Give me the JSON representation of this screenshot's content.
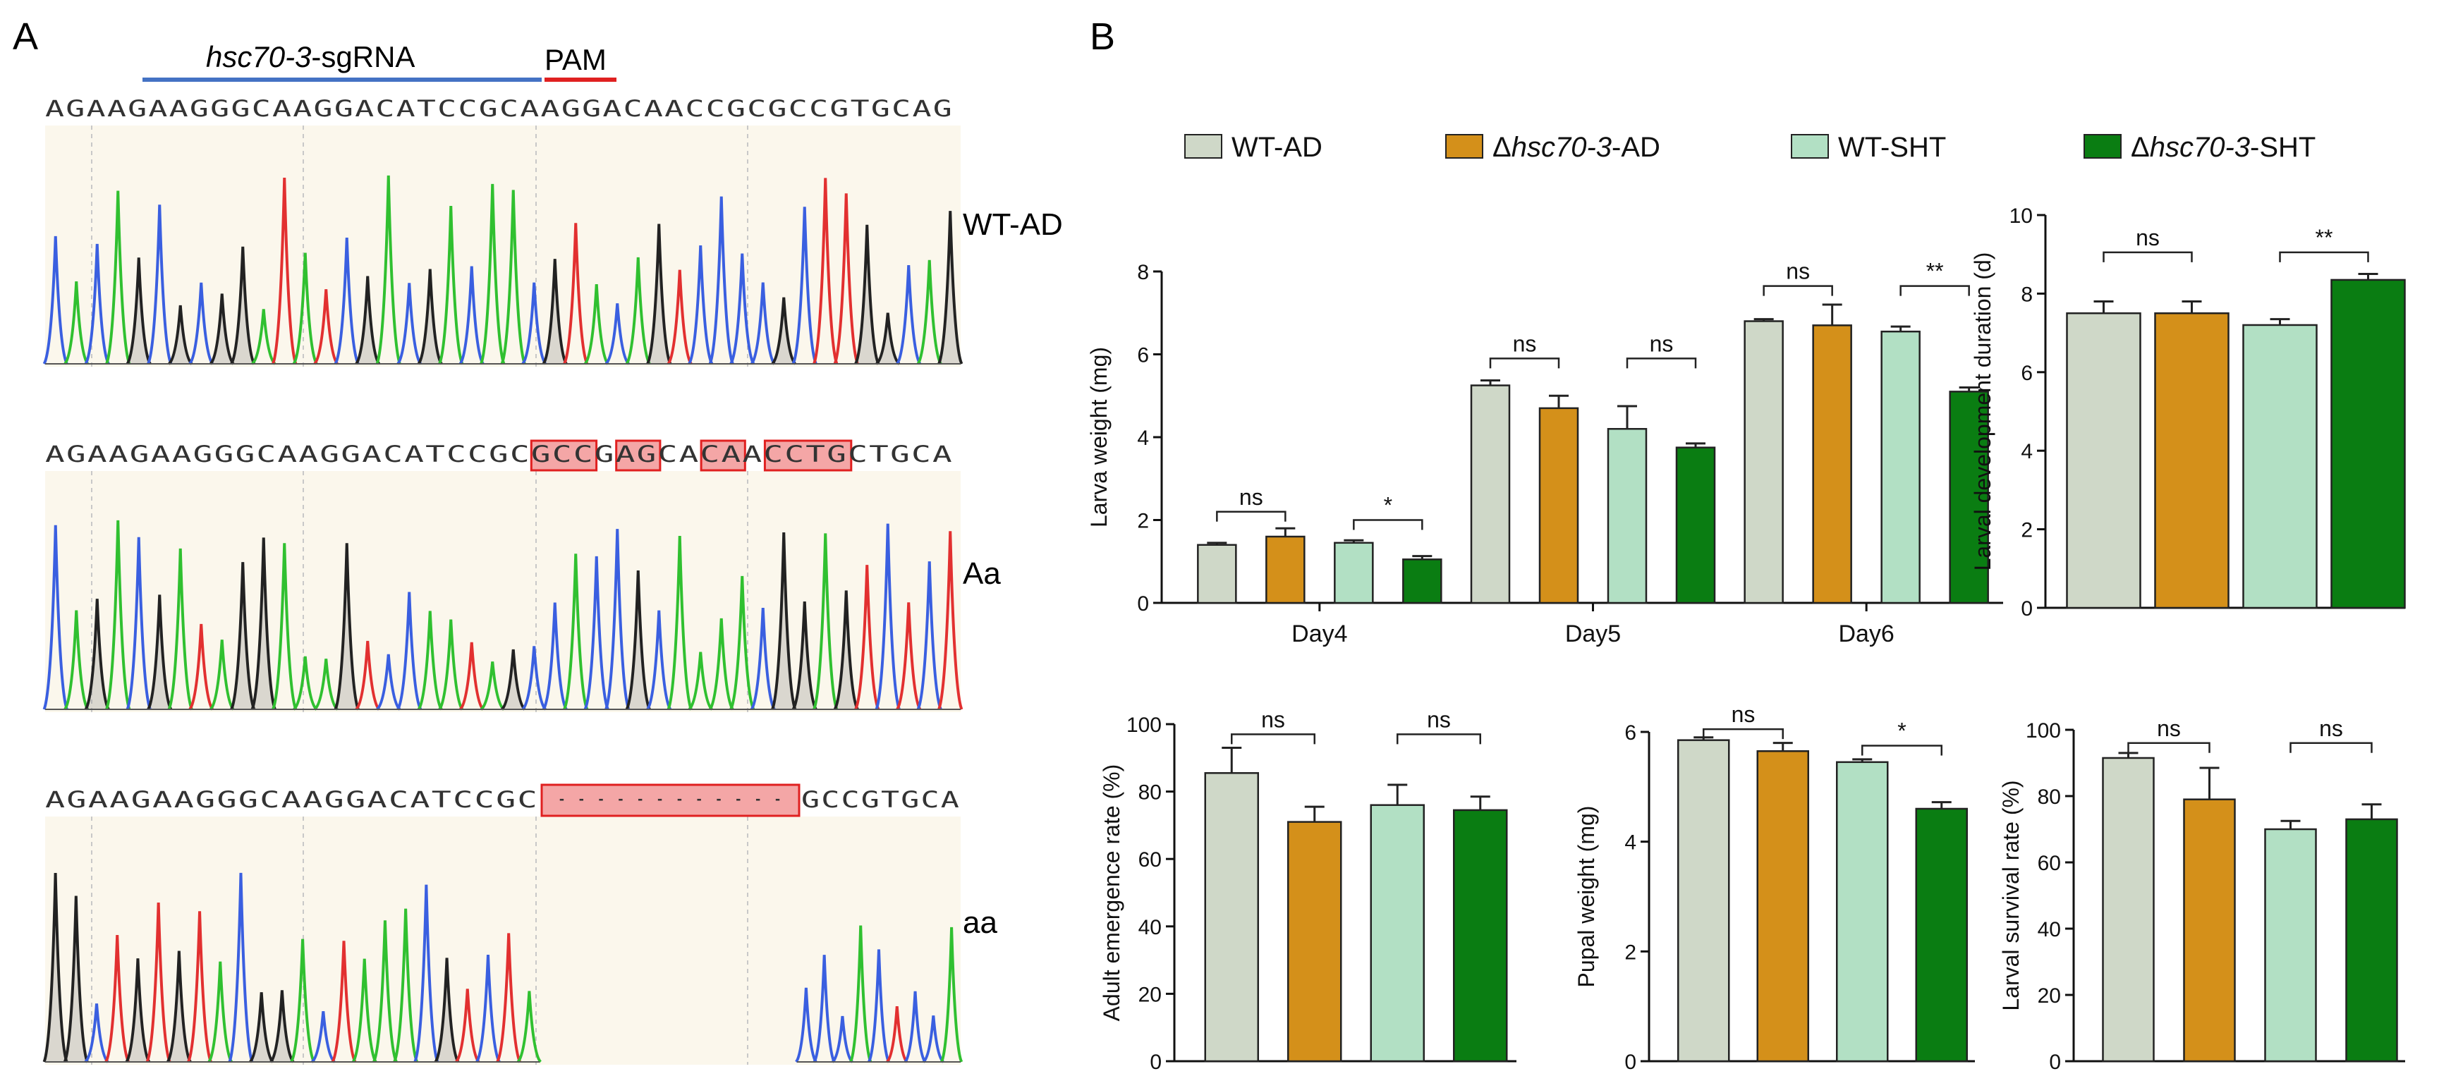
{
  "panels": {
    "A": "A",
    "B": "B"
  },
  "panel_a": {
    "sgrna_label_italic": "hsc70-3",
    "sgrna_label_suffix": "-sgRNA",
    "pam_label": "PAM",
    "colors": {
      "sgrna_bar": "#4472c4",
      "pam_bar": "#e02020",
      "trace_bg": "#fbf7ec",
      "A": "#30c030",
      "C": "#3a5fe0",
      "G": "#222222",
      "T": "#e23030",
      "box_fill": "#f4a6a6",
      "box_stroke": "#e02020"
    },
    "tracks": [
      {
        "label": "WT-AD",
        "sequence": "AGAAGAAGGGCAAGGACATCCGCAAGGACAACCGCGCCGTGCAG",
        "boxes": [],
        "gap": null
      },
      {
        "label": "Aa",
        "sequence": "AGAAGAAGGGCAAGGACATCCGCGCCGAGCACAACCTGCTGCA",
        "boxes": [
          [
            23,
            26
          ],
          [
            27,
            29
          ],
          [
            31,
            33
          ],
          [
            34,
            38
          ]
        ],
        "gap": null
      },
      {
        "label": "aa",
        "sequence_left": "AGAAGAAGGGCAAGGACATCCGC",
        "gap_text": "- - - - - - - - - - - -",
        "sequence_right": "GCCGTGCA",
        "boxes": [],
        "gap": true
      }
    ]
  },
  "legend": [
    {
      "name": "WT-AD",
      "color": "#cfd8c8"
    },
    {
      "name": "Δhsc70-3-AD",
      "color": "#d4901a"
    },
    {
      "name": "WT-SHT",
      "color": "#b2e0c4"
    },
    {
      "name": "Δhsc70-3-SHT",
      "color": "#0a7d12"
    }
  ],
  "chart_data": [
    {
      "id": "larva-weight",
      "type": "bar",
      "ylabel": "Larva weight (mg)",
      "ylim": [
        0,
        8
      ],
      "yticks": [
        0,
        2,
        4,
        6,
        8
      ],
      "categories": [
        "Day4",
        "Day5",
        "Day6"
      ],
      "series": [
        {
          "name": "WT-AD",
          "values": [
            1.4,
            5.25,
            6.8
          ],
          "errors": [
            0.05,
            0.12,
            0.05
          ]
        },
        {
          "name": "Δhsc70-3-AD",
          "values": [
            1.6,
            4.7,
            6.7
          ],
          "errors": [
            0.2,
            0.3,
            0.5
          ]
        },
        {
          "name": "WT-SHT",
          "values": [
            1.45,
            4.2,
            6.55
          ],
          "errors": [
            0.06,
            0.55,
            0.12
          ]
        },
        {
          "name": "Δhsc70-3-SHT",
          "values": [
            1.05,
            3.75,
            5.1
          ],
          "errors": [
            0.08,
            0.1,
            0.1
          ]
        }
      ],
      "significance": [
        {
          "cat": 0,
          "from": 0,
          "to": 1,
          "y": 2.2,
          "label": "ns"
        },
        {
          "cat": 0,
          "from": 2,
          "to": 3,
          "y": 2.0,
          "label": "*"
        },
        {
          "cat": 1,
          "from": 0,
          "to": 1,
          "y": 5.9,
          "label": "ns"
        },
        {
          "cat": 1,
          "from": 2,
          "to": 3,
          "y": 5.9,
          "label": "ns"
        },
        {
          "cat": 2,
          "from": 0,
          "to": 1,
          "y": 7.65,
          "label": "ns"
        },
        {
          "cat": 2,
          "from": 2,
          "to": 3,
          "y": 7.65,
          "label": "**"
        }
      ]
    },
    {
      "id": "larval-development",
      "type": "bar",
      "ylabel": "Larval development duration (d)",
      "ylim": [
        0,
        10
      ],
      "yticks": [
        0,
        2,
        4,
        6,
        8,
        10
      ],
      "categories": [
        ""
      ],
      "series": [
        {
          "name": "WT-AD",
          "values": [
            7.5
          ],
          "errors": [
            0.3
          ]
        },
        {
          "name": "Δhsc70-3-AD",
          "values": [
            7.5
          ],
          "errors": [
            0.3
          ]
        },
        {
          "name": "WT-SHT",
          "values": [
            7.2
          ],
          "errors": [
            0.15
          ]
        },
        {
          "name": "Δhsc70-3-SHT",
          "values": [
            8.35
          ],
          "errors": [
            0.15
          ]
        }
      ],
      "significance": [
        {
          "cat": 0,
          "from": 0,
          "to": 1,
          "y": 9.05,
          "label": "ns"
        },
        {
          "cat": 0,
          "from": 2,
          "to": 3,
          "y": 9.05,
          "label": "**"
        }
      ]
    },
    {
      "id": "adult-emergence",
      "type": "bar",
      "ylabel": "Adult emergence rate (%)",
      "ylim": [
        0,
        100
      ],
      "yticks": [
        0,
        20,
        40,
        60,
        80,
        100
      ],
      "categories": [
        ""
      ],
      "series": [
        {
          "name": "WT-AD",
          "values": [
            85.5
          ],
          "errors": [
            7.5
          ]
        },
        {
          "name": "Δhsc70-3-AD",
          "values": [
            71
          ],
          "errors": [
            4.5
          ]
        },
        {
          "name": "WT-SHT",
          "values": [
            76
          ],
          "errors": [
            6
          ]
        },
        {
          "name": "Δhsc70-3-SHT",
          "values": [
            74.5
          ],
          "errors": [
            4
          ]
        }
      ],
      "significance": [
        {
          "cat": 0,
          "from": 0,
          "to": 1,
          "y": 97,
          "label": "ns"
        },
        {
          "cat": 0,
          "from": 2,
          "to": 3,
          "y": 97,
          "label": "ns"
        }
      ]
    },
    {
      "id": "pupal-weight",
      "type": "bar",
      "ylabel": "Pupal weight (mg)",
      "ylim": [
        0,
        6
      ],
      "yticks": [
        0,
        2,
        4,
        6
      ],
      "categories": [
        ""
      ],
      "series": [
        {
          "name": "WT-AD",
          "values": [
            5.85
          ],
          "errors": [
            0.05
          ]
        },
        {
          "name": "Δhsc70-3-AD",
          "values": [
            5.65
          ],
          "errors": [
            0.15
          ]
        },
        {
          "name": "WT-SHT",
          "values": [
            5.45
          ],
          "errors": [
            0.05
          ]
        },
        {
          "name": "Δhsc70-3-SHT",
          "values": [
            4.6
          ],
          "errors": [
            0.12
          ]
        }
      ],
      "significance": [
        {
          "cat": 0,
          "from": 0,
          "to": 1,
          "y": 6.05,
          "label": "ns"
        },
        {
          "cat": 0,
          "from": 2,
          "to": 3,
          "y": 5.75,
          "label": "*"
        }
      ]
    },
    {
      "id": "larval-survival",
      "type": "bar",
      "ylabel": "Larval survival rate (%)",
      "ylim": [
        0,
        100
      ],
      "yticks": [
        0,
        20,
        40,
        60,
        80,
        100
      ],
      "categories": [
        ""
      ],
      "series": [
        {
          "name": "WT-AD",
          "values": [
            91.5
          ],
          "errors": [
            1.5
          ]
        },
        {
          "name": "Δhsc70-3-AD",
          "values": [
            79
          ],
          "errors": [
            9.5
          ]
        },
        {
          "name": "WT-SHT",
          "values": [
            70
          ],
          "errors": [
            2.5
          ]
        },
        {
          "name": "Δhsc70-3-SHT",
          "values": [
            73
          ],
          "errors": [
            4.5
          ]
        }
      ],
      "significance": [
        {
          "cat": 0,
          "from": 0,
          "to": 1,
          "y": 96,
          "label": "ns"
        },
        {
          "cat": 0,
          "from": 2,
          "to": 3,
          "y": 96,
          "label": "ns"
        }
      ]
    }
  ]
}
